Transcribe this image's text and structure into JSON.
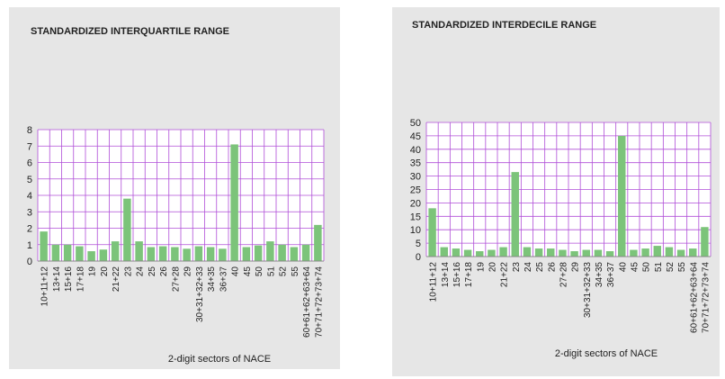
{
  "chart_data": [
    {
      "type": "bar",
      "title": "STANDARDIZED INTERQUARTILE RANGE",
      "x_label": "2-digit sectors of NACE",
      "categories": [
        "10+11+12",
        "13+14",
        "15+16",
        "17+18",
        "19",
        "20",
        "21+22",
        "23",
        "24",
        "25",
        "26",
        "27+28",
        "29",
        "30+31+32+33",
        "34+35",
        "36+37",
        "40",
        "45",
        "50",
        "51",
        "52",
        "55",
        "60+61+62+63+64",
        "70+71+72+73+74"
      ],
      "values": [
        1.8,
        1.0,
        1.0,
        0.9,
        0.6,
        0.7,
        1.2,
        3.8,
        1.2,
        0.85,
        0.9,
        0.85,
        0.75,
        0.9,
        0.85,
        0.75,
        7.1,
        0.85,
        0.95,
        1.2,
        1.0,
        0.85,
        1.0,
        2.2
      ],
      "color": "#7cc47a",
      "grid_color": "#b04fd8",
      "ylim": [
        0,
        8
      ],
      "yticks": [
        0,
        1,
        2,
        3,
        4,
        5,
        6,
        7,
        8
      ],
      "grid": true
    },
    {
      "type": "bar",
      "title": "STANDARDIZED INTERDECILE RANGE",
      "x_label": "2-digit sectors of NACE",
      "categories": [
        "10+11+12",
        "13+14",
        "15+16",
        "17+18",
        "19",
        "20",
        "21+22",
        "23",
        "24",
        "25",
        "26",
        "27+28",
        "29",
        "30+31+32+33",
        "34+35",
        "36+37",
        "40",
        "45",
        "50",
        "51",
        "52",
        "55",
        "60+61+62+63+64",
        "70+71+72+73+74"
      ],
      "values": [
        18,
        3.5,
        3,
        2.5,
        2,
        2.5,
        3.5,
        31.5,
        3.5,
        3,
        3,
        2.5,
        2,
        2.5,
        2.5,
        2,
        45,
        2.5,
        3,
        4,
        3.5,
        2.5,
        3,
        11
      ],
      "color": "#7cc47a",
      "grid_color": "#b04fd8",
      "ylim": [
        0,
        50
      ],
      "yticks": [
        0,
        5,
        10,
        15,
        20,
        25,
        30,
        35,
        40,
        45,
        50
      ],
      "grid": true
    }
  ]
}
